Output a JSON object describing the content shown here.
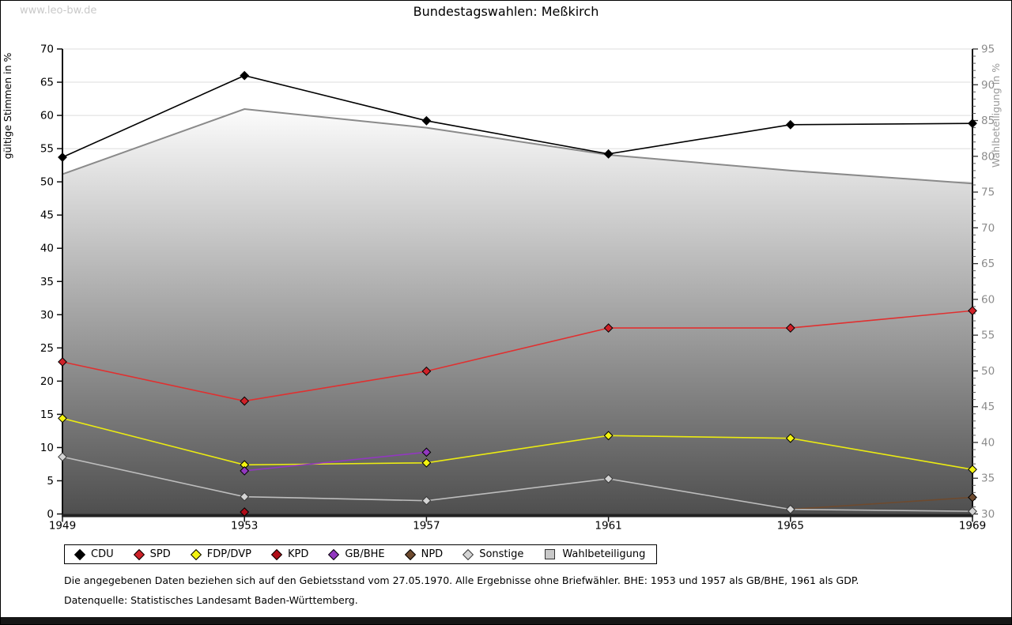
{
  "page": {
    "watermark": "www.leo-bw.de",
    "title": "Bundestagswahlen: Meßkirch",
    "footnote1": "Die angegebenen Daten beziehen sich auf den Gebietsstand vom 27.05.1970. Alle Ergebnisse ohne Briefwähler. BHE: 1953 und 1957 als GB/BHE, 1961 als GDP.",
    "footnote2": "Datenquelle: Statistisches Landesamt Baden-Württemberg."
  },
  "chart_data": {
    "type": "line",
    "title": "Bundestagswahlen: Meßkirch",
    "x": [
      1949,
      1953,
      1957,
      1961,
      1965,
      1969
    ],
    "xlabel": "",
    "ylabel_left": "gültige Stimmen in %",
    "ylabel_right": "Wahlbeteiligung in %",
    "ylim_left": [
      0,
      70
    ],
    "ylim_right": [
      30,
      95
    ],
    "ytick_step": 5,
    "right_minor_tick_step": 1,
    "grid": true,
    "legend_position": "bottom",
    "area_gradient": [
      "#fcfcfc",
      "#4e4e4e"
    ],
    "series": [
      {
        "name": "CDU",
        "axis": "left",
        "style": "line",
        "color": "#000000",
        "marker_fill": "#000000",
        "marker_stroke": "#000000",
        "values": [
          53.7,
          66.0,
          59.2,
          54.2,
          58.6,
          58.8
        ]
      },
      {
        "name": "SPD",
        "axis": "left",
        "style": "line",
        "color": "#e03030",
        "marker_fill": "#cf2128",
        "marker_stroke": "#000000",
        "values": [
          22.9,
          17.0,
          21.5,
          28.0,
          28.0,
          30.6
        ]
      },
      {
        "name": "FDP/DVP",
        "axis": "left",
        "style": "line",
        "color": "#ebeb12",
        "marker_fill": "#f4f411",
        "marker_stroke": "#000000",
        "values": [
          14.4,
          7.4,
          7.7,
          11.8,
          11.4,
          6.7
        ]
      },
      {
        "name": "KPD",
        "axis": "left",
        "style": "line",
        "color": "#b00d18",
        "marker_fill": "#b00d18",
        "marker_stroke": "#000000",
        "values": [
          null,
          0.3,
          null,
          null,
          null,
          null
        ]
      },
      {
        "name": "GB/BHE",
        "axis": "left",
        "style": "line",
        "color": "#9238c0",
        "marker_fill": "#9238c0",
        "marker_stroke": "#000000",
        "values": [
          null,
          6.5,
          9.3,
          null,
          null,
          null
        ]
      },
      {
        "name": "NPD",
        "axis": "left",
        "style": "line",
        "color": "#6e4a2e",
        "marker_fill": "#6e4a2e",
        "marker_stroke": "#000000",
        "values": [
          null,
          null,
          null,
          null,
          0.7,
          2.5
        ]
      },
      {
        "name": "Sonstige",
        "axis": "left",
        "style": "line",
        "color": "#bdbdbd",
        "marker_fill": "#d4d4d4",
        "marker_stroke": "#3a3a3a",
        "values": [
          8.6,
          2.6,
          2.0,
          5.3,
          0.7,
          0.4
        ]
      },
      {
        "name": "Wahlbeteiligung",
        "axis": "right",
        "style": "area",
        "color": "#8a8a8a",
        "legend_fill": "#c9c9c9",
        "values": [
          77.5,
          86.6,
          84.0,
          80.2,
          78.0,
          76.2
        ]
      }
    ]
  }
}
